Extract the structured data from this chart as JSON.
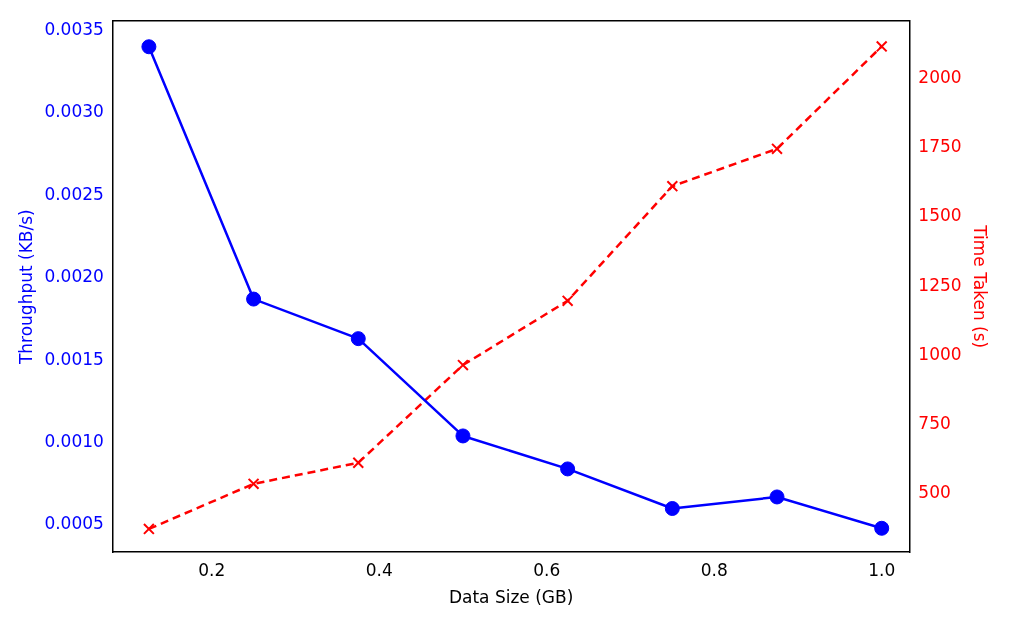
{
  "chart_data": {
    "type": "line",
    "xlabel": "Data Size (GB)",
    "ylabel": "Throughput (KB/s)",
    "y2label": "Time Taken (s)",
    "x": [
      0.125,
      0.25,
      0.375,
      0.5,
      0.625,
      0.75,
      0.875,
      1.0
    ],
    "series": [
      {
        "color": "#0000ff",
        "marker": "circle",
        "line_style": "solid",
        "values": [
          0.0034,
          0.00187,
          0.00163,
          0.00104,
          0.00084,
          0.0006,
          0.00067,
          0.00048
        ]
      },
      {
        "color": "#ff0000",
        "marker": "cross",
        "line_style": "dashed",
        "axis": "y2",
        "values": [
          373,
          536,
          612,
          965,
          1197,
          1611,
          1746,
          2116
        ]
      }
    ],
    "xlim": [
      0.082,
      1.033
    ],
    "xticks": [
      0.2,
      0.4,
      0.6,
      0.8,
      {
        "value": 1,
        "label": "1.0"
      }
    ],
    "ylim": [
      0.000335,
      0.003555
    ],
    "yticks": [
      0.0005,
      {
        "value": 0.001,
        "label": "0.0010"
      },
      0.0015,
      {
        "value": 0.002,
        "label": "0.0020"
      },
      0.0025,
      {
        "value": 0.003,
        "label": "0.0030"
      },
      0.0035
    ],
    "y2lim": [
      289,
      2207
    ],
    "y2ticks": [
      500,
      750,
      1000,
      1250,
      1500,
      1750,
      2000
    ],
    "grid": false,
    "legend": false
  }
}
